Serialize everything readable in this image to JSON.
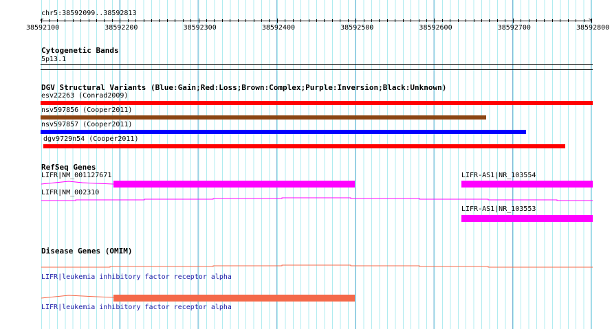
{
  "ruler": {
    "region": "chr5:38592099..38592813",
    "ticks": [
      "38592100",
      "38592200",
      "38592300",
      "38592400",
      "38592500",
      "38592600",
      "38592700",
      "38592800"
    ]
  },
  "tracks": {
    "cyto": {
      "title": "Cytogenetic Bands",
      "band": "5p13.1"
    },
    "dgv": {
      "title": "DGV Structural Variants (Blue:Gain;Red:Loss;Brown:Complex;Purple:Inversion;Black:Unknown)",
      "items": [
        {
          "label": "esv22263 (Conrad2009)",
          "color": "#ff0000"
        },
        {
          "label": "nsv597856 (Cooper2011)",
          "color": "#8b4513"
        },
        {
          "label": "nsv597857 (Cooper2011)",
          "color": "#0000ff"
        },
        {
          "label": "dgv9729n54 (Cooper2011)",
          "color": "#ff0000"
        }
      ]
    },
    "refseq": {
      "title": "RefSeq Genes",
      "color": "#ff00ff",
      "items": [
        {
          "label": "LIFR|NM_001127671"
        },
        {
          "label": "LIFR-AS1|NR_103554"
        },
        {
          "label": "LIFR|NM_002310"
        },
        {
          "label": "LIFR-AS1|NR_103553"
        }
      ]
    },
    "omim": {
      "title": "Disease Genes (OMIM)",
      "color": "#f4694a",
      "items": [
        {
          "label": "LIFR|leukemia inhibitory factor receptor alpha"
        },
        {
          "label": "LIFR|leukemia inhibitory factor receptor alpha"
        }
      ]
    }
  }
}
